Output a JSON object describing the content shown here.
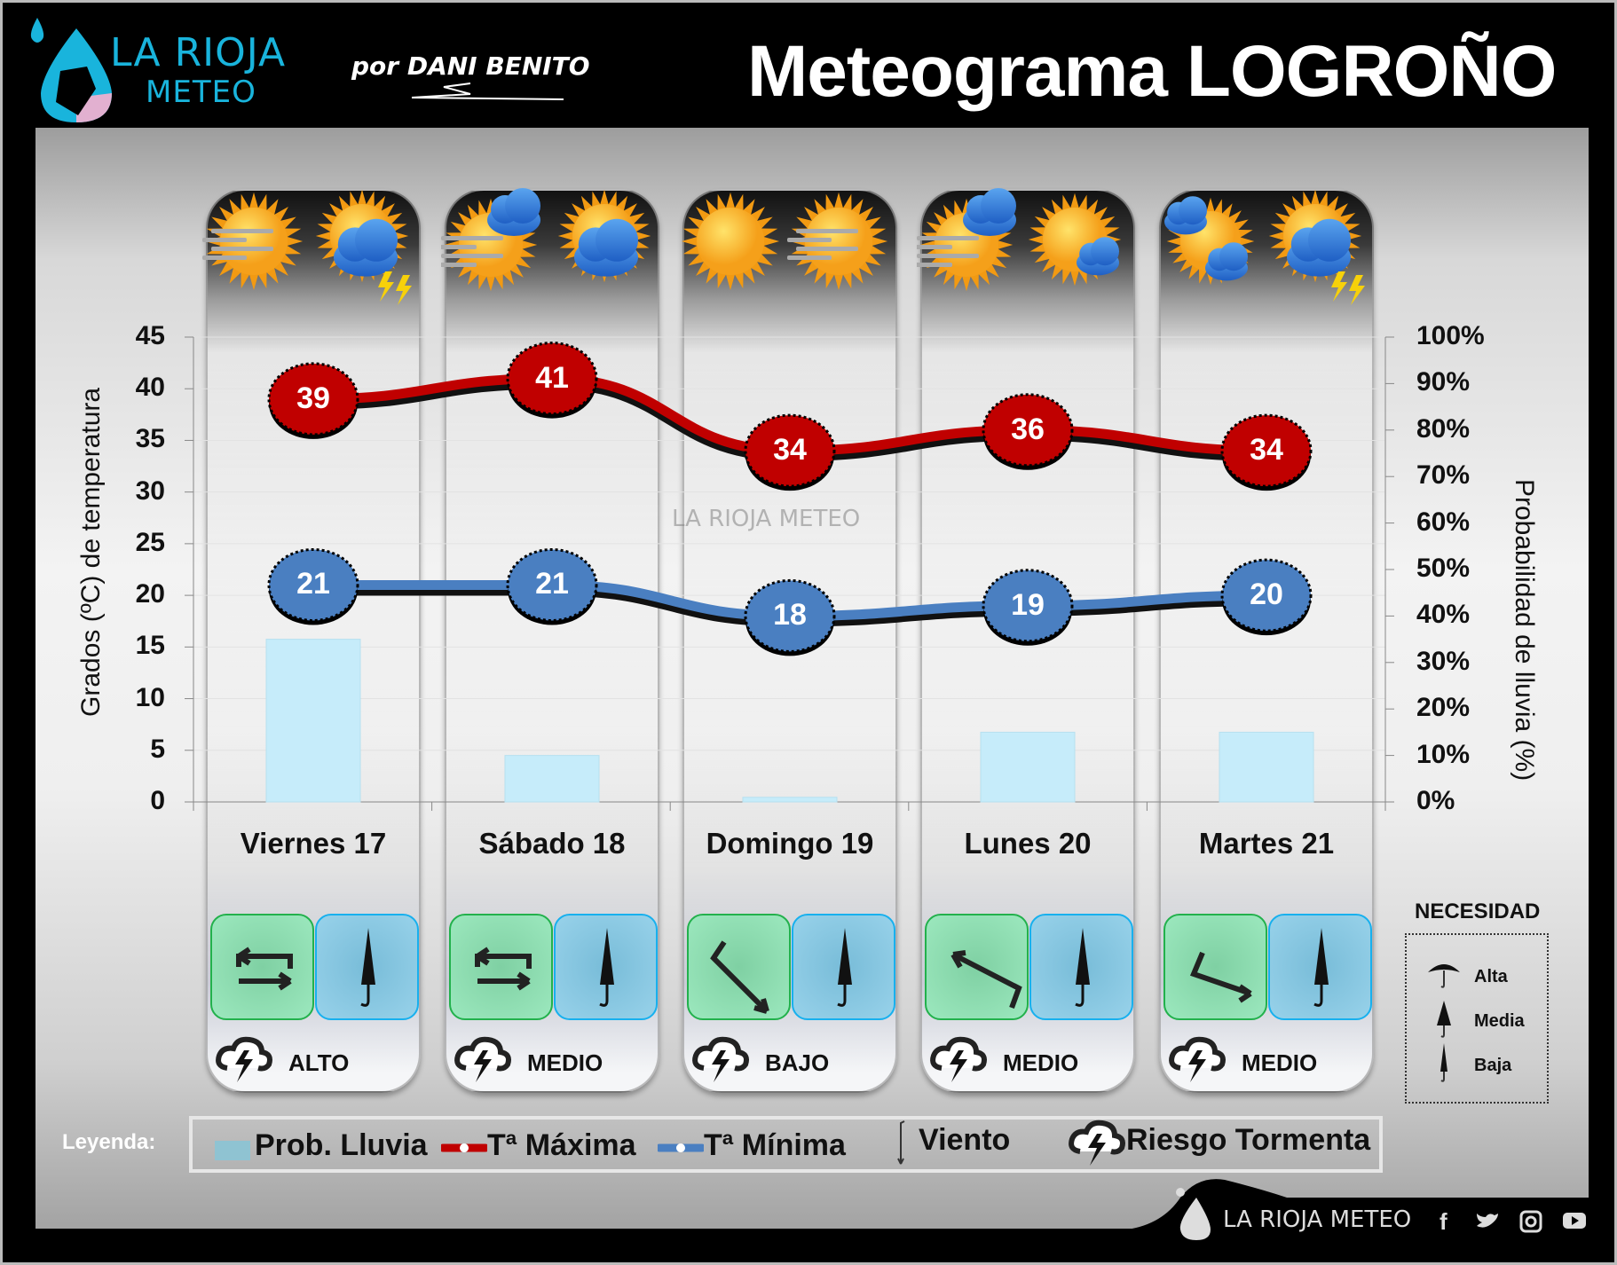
{
  "header": {
    "logo_line1": "LA RIOJA",
    "logo_line2": "METEO",
    "author": "por DANI BENITO",
    "title": "Meteograma LOGROÑO"
  },
  "watermark": "LA RIOJA METEO",
  "days": [
    {
      "label": "Viernes 17",
      "icons": [
        "sun-fog",
        "partly-cloudy-storm"
      ],
      "wind": "variable",
      "umbrella": "baja",
      "storm_risk": "ALTO"
    },
    {
      "label": "Sábado 18",
      "icons": [
        "sun-fog-cloud",
        "partly-cloudy"
      ],
      "wind": "variable",
      "umbrella": "baja",
      "storm_risk": "MEDIO"
    },
    {
      "label": "Domingo 19",
      "icons": [
        "sunny",
        "sun-fog"
      ],
      "wind": "arrow-southeast",
      "umbrella": "baja",
      "storm_risk": "BAJO"
    },
    {
      "label": "Lunes 20",
      "icons": [
        "sun-fog-cloud",
        "sun-small-cloud"
      ],
      "wind": "arrow-northwest",
      "umbrella": "baja",
      "storm_risk": "MEDIO"
    },
    {
      "label": "Martes 21",
      "icons": [
        "cloudy-sun",
        "partly-cloudy-storm"
      ],
      "wind": "arrow-east-southeast",
      "umbrella": "baja",
      "storm_risk": "MEDIO"
    }
  ],
  "chart_data": {
    "type": "line",
    "categories": [
      "Viernes 17",
      "Sábado 18",
      "Domingo 19",
      "Lunes 20",
      "Martes 21"
    ],
    "series": [
      {
        "name": "Tª Máxima",
        "values": [
          39,
          41,
          34,
          36,
          34
        ],
        "color": "#c00000",
        "axis": "left"
      },
      {
        "name": "Tª Mínima",
        "values": [
          21,
          21,
          18,
          19,
          20
        ],
        "color": "#4a7fc1",
        "axis": "left"
      },
      {
        "name": "Prob. Lluvia",
        "type": "bar",
        "values": [
          35,
          10,
          1,
          15,
          15
        ],
        "color": "#c6ecfa",
        "axis": "right"
      }
    ],
    "ylabel": "Grados (ºC) de temperatura",
    "ylabel_right": "Probabilidad de lluvia (%)",
    "ylim": [
      0,
      45
    ],
    "ylim_right": [
      0,
      100
    ],
    "yticks": [
      "0",
      "5",
      "10",
      "15",
      "20",
      "25",
      "30",
      "35",
      "40",
      "45"
    ],
    "yticks_right": [
      "0%",
      "10%",
      "20%",
      "30%",
      "40%",
      "50%",
      "60%",
      "70%",
      "80%",
      "90%",
      "100%"
    ],
    "grid": true
  },
  "legend": {
    "title": "Leyenda:",
    "rain": "Prob. Lluvia",
    "tmax": "Tª Máxima",
    "tmin": "Tª Mínima",
    "wind": "Viento",
    "storm": "Riesgo Tormenta"
  },
  "need": {
    "title": "NECESIDAD",
    "items": [
      "Alta",
      "Media",
      "Baja"
    ]
  },
  "footer": {
    "brand": "LA RIOJA METEO",
    "social": [
      "facebook-icon",
      "twitter-icon",
      "instagram-icon",
      "youtube-icon"
    ]
  }
}
